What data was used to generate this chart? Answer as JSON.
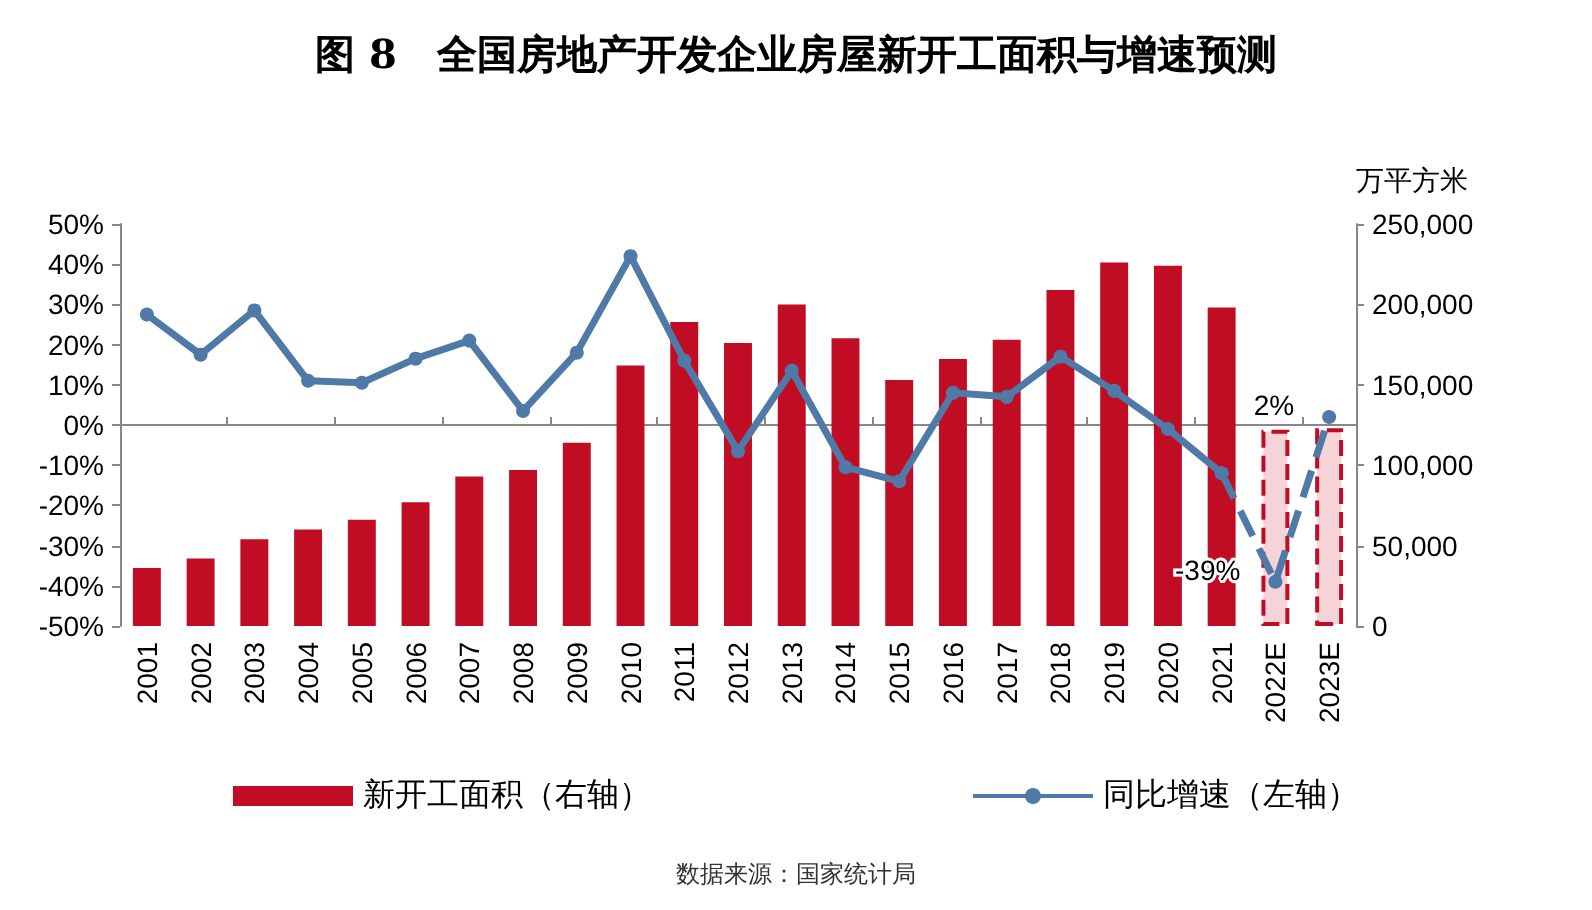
{
  "chart_data": {
    "type": "bar",
    "title": "图 8　全国房地产开发企业房屋新开工面积与增速预测",
    "y2label": "万平方米",
    "categories": [
      "2001",
      "2002",
      "2003",
      "2004",
      "2005",
      "2006",
      "2007",
      "2008",
      "2009",
      "2010",
      "2011",
      "2012",
      "2013",
      "2014",
      "2015",
      "2016",
      "2017",
      "2018",
      "2019",
      "2020",
      "2021",
      "2022E",
      "2023E"
    ],
    "series": [
      {
        "name": "新开工面积（右轴）",
        "axis": "y2",
        "color": "#c00d23",
        "values": [
          36000,
          42000,
          54000,
          60000,
          66000,
          77000,
          93000,
          97000,
          114000,
          162000,
          189000,
          176000,
          200000,
          179000,
          153000,
          166000,
          178000,
          209000,
          226000,
          224000,
          198000,
          null,
          null
        ]
      },
      {
        "axis": "y2",
        "color": "#f5d3d9",
        "line_style": "dashed",
        "values": [
          null,
          null,
          null,
          null,
          null,
          null,
          null,
          null,
          null,
          null,
          null,
          null,
          null,
          null,
          null,
          null,
          null,
          null,
          null,
          null,
          null,
          122000,
          123000
        ]
      },
      {
        "name": "同比增速（左轴）",
        "type": "line",
        "axis": "y",
        "color": "#4f7aa8",
        "marker": "circle",
        "values": [
          27.5,
          17.5,
          28.5,
          11,
          10.5,
          16.5,
          21,
          3.5,
          18,
          42,
          16,
          -6.5,
          13.5,
          -10.5,
          -14,
          8,
          7,
          17,
          8.5,
          -1,
          -12,
          null,
          null
        ]
      },
      {
        "type": "line",
        "axis": "y",
        "color": "#4f7aa8",
        "marker": "circle",
        "line_style": "dashed",
        "values": [
          null,
          null,
          null,
          null,
          null,
          null,
          null,
          null,
          null,
          null,
          null,
          null,
          null,
          null,
          null,
          null,
          null,
          null,
          null,
          null,
          -12,
          -39,
          2
        ],
        "value_labels": [
          null,
          null,
          null,
          null,
          null,
          null,
          null,
          null,
          null,
          null,
          null,
          null,
          null,
          null,
          null,
          null,
          null,
          null,
          null,
          null,
          null,
          "-39%",
          "2%"
        ]
      }
    ],
    "ylim": [
      -50,
      50
    ],
    "yticks": [
      {
        "value": -50,
        "label": "-50%"
      },
      {
        "value": -40,
        "label": "-40%"
      },
      {
        "value": -30,
        "label": "-30%"
      },
      {
        "value": -20,
        "label": "-20%"
      },
      {
        "value": -10,
        "label": "-10%"
      },
      {
        "value": 0,
        "label": "0%"
      },
      {
        "value": 10,
        "label": "10%"
      },
      {
        "value": 20,
        "label": "20%"
      },
      {
        "value": 30,
        "label": "30%"
      },
      {
        "value": 40,
        "label": "40%"
      },
      {
        "value": 50,
        "label": "50%"
      }
    ],
    "y2lim": [
      0,
      250000
    ],
    "y2ticks": [
      0,
      {
        "value": 50000,
        "label": "50,000"
      },
      {
        "value": 100000,
        "label": "100,000"
      },
      {
        "value": 150000,
        "label": "150,000"
      },
      {
        "value": 200000,
        "label": "200,000"
      },
      {
        "value": 250000,
        "label": "250,000"
      }
    ],
    "legend": "bottom",
    "annotations": [
      "数据来源：国家统计局"
    ]
  }
}
